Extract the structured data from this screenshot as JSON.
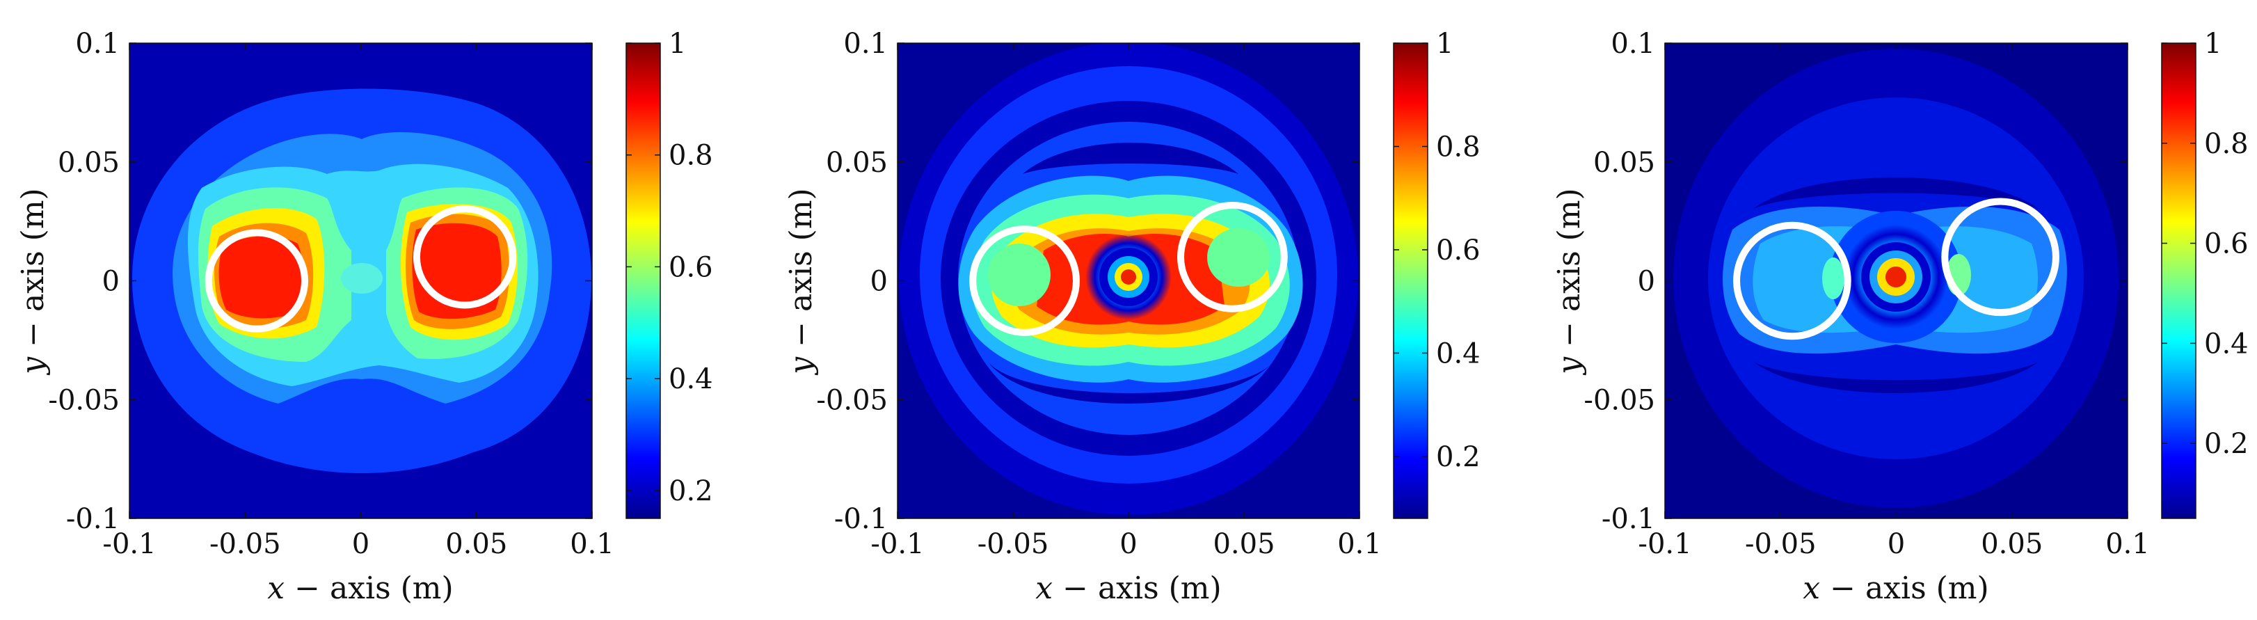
{
  "chart_data": [
    {
      "type": "heatmap",
      "colormap": "jet",
      "xlabel_var": "x",
      "xlabel_rest": " − axis (m)",
      "ylabel_var": "y",
      "ylabel_rest": " − axis (m)",
      "xlim": [
        -0.1,
        0.1
      ],
      "ylim": [
        -0.1,
        0.1
      ],
      "xticks": [
        "-0.1",
        "-0.05",
        "0",
        "0.05",
        "0.1"
      ],
      "yticks": [
        "-0.1",
        "-0.05",
        "0",
        "0.05",
        "0.1"
      ],
      "colorbar": {
        "min": 0.15,
        "max": 1,
        "ticks": [
          0.2,
          0.4,
          0.6,
          0.8,
          1
        ],
        "tick_labels": [
          "0.2",
          "0.4",
          "0.6",
          "0.8",
          "1"
        ]
      },
      "circles": [
        {
          "x": -0.045,
          "y": 0.0,
          "r": 0.013
        },
        {
          "x": 0.045,
          "y": 0.01,
          "r": 0.013
        }
      ],
      "hotspots": [
        {
          "x": -0.045,
          "y": 0.0,
          "value": 1.0
        },
        {
          "x": 0.045,
          "y": 0.01,
          "value": 1.0
        }
      ]
    },
    {
      "type": "heatmap",
      "colormap": "jet",
      "xlabel_var": "x",
      "xlabel_rest": " − axis (m)",
      "ylabel_var": "y",
      "ylabel_rest": " − axis (m)",
      "xlim": [
        -0.1,
        0.1
      ],
      "ylim": [
        -0.1,
        0.1
      ],
      "xticks": [
        "-0.1",
        "-0.05",
        "0",
        "0.05",
        "0.1"
      ],
      "yticks": [
        "-0.1",
        "-0.05",
        "0",
        "0.05",
        "0.1"
      ],
      "colorbar": {
        "min": 0.08,
        "max": 1,
        "ticks": [
          0.2,
          0.4,
          0.6,
          0.8,
          1
        ],
        "tick_labels": [
          "0.2",
          "0.4",
          "0.6",
          "0.8",
          "1"
        ]
      },
      "circles": [
        {
          "x": -0.045,
          "y": 0.0,
          "r": 0.014
        },
        {
          "x": 0.045,
          "y": 0.01,
          "r": 0.014
        }
      ],
      "hotspots": [
        {
          "x": 0.0,
          "y": 0.0,
          "value": 1.0
        }
      ]
    },
    {
      "type": "heatmap",
      "colormap": "jet",
      "xlabel_var": "x",
      "xlabel_rest": " − axis (m)",
      "ylabel_var": "y",
      "ylabel_rest": " − axis (m)",
      "xlim": [
        -0.1,
        0.1
      ],
      "ylim": [
        -0.1,
        0.1
      ],
      "xticks": [
        "-0.1",
        "-0.05",
        "0",
        "0.05",
        "0.1"
      ],
      "yticks": [
        "-0.1",
        "-0.05",
        "0",
        "0.05",
        "0.1"
      ],
      "colorbar": {
        "min": 0.05,
        "max": 1,
        "ticks": [
          0.2,
          0.4,
          0.6,
          0.8,
          1
        ],
        "tick_labels": [
          "0.2",
          "0.4",
          "0.6",
          "0.8",
          "1"
        ]
      },
      "circles": [
        {
          "x": -0.045,
          "y": 0.0,
          "r": 0.015
        },
        {
          "x": 0.045,
          "y": 0.01,
          "r": 0.015
        }
      ],
      "hotspots": [
        {
          "x": 0.0,
          "y": 0.0,
          "value": 1.0
        }
      ]
    }
  ]
}
